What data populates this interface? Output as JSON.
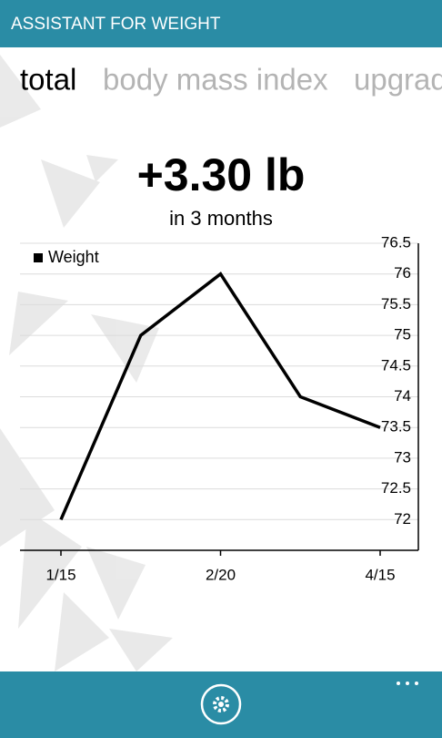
{
  "header": {
    "title": "ASSISTANT FOR WEIGHT"
  },
  "tabs": [
    "total",
    "body mass index",
    "upgrade"
  ],
  "chart_data": {
    "type": "line",
    "title": "+3.30 lb",
    "subtitle": "in 3 months",
    "categories": [
      "1/15",
      null,
      "2/20",
      null,
      "4/15"
    ],
    "series": [
      {
        "name": "Weight",
        "color": "#000000",
        "values": [
          72,
          75,
          76,
          74,
          73.5
        ]
      }
    ],
    "ylim": [
      71.5,
      76.5
    ],
    "yticks": [
      72,
      72.5,
      73,
      73.5,
      74,
      74.5,
      75,
      75.5,
      76,
      76.5
    ],
    "grid": true,
    "legend": "top-left"
  }
}
